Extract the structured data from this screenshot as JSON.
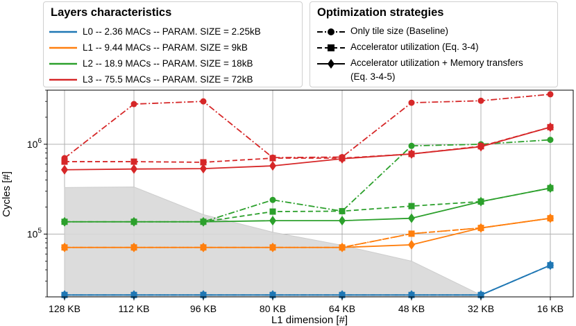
{
  "chart_data": {
    "type": "line",
    "xlabel": "L1 dimension [#]",
    "ylabel": "Cycles [#]",
    "yscale": "log",
    "ylim": [
      20000,
      4000000
    ],
    "y_tick_labels": [
      "10^5",
      "10^6"
    ],
    "categories": [
      "128 KB",
      "112 KB",
      "96 KB",
      "80 KB",
      "64 KB",
      "48 KB",
      "32 KB",
      "16 KB"
    ],
    "grid": true,
    "shaded_region": {
      "label": "",
      "color": "#d9d9d9",
      "upper_values": [
        330000,
        335000,
        165000,
        105000,
        75000,
        50000,
        21000,
        21000
      ],
      "x_range": [
        0,
        6
      ]
    },
    "legend_layers": {
      "title": "Layers characteristics",
      "entries": [
        {
          "label": "L0 -- 2.36 MACs -- PARAM. SIZE = 2.25kB",
          "color": "#1f77b4"
        },
        {
          "label": "L1 -- 9.44 MACs -- PARAM. SIZE = 9kB",
          "color": "#ff7f0e"
        },
        {
          "label": "L2 -- 18.9 MACs -- PARAM. SIZE = 18kB",
          "color": "#2ca02c"
        },
        {
          "label": "L3 -- 75.5 MACs -- PARAM. SIZE = 72kB",
          "color": "#d62728"
        }
      ]
    },
    "legend_strategies": {
      "title": "Optimization strategies",
      "entries": [
        {
          "label": "Only tile size (Baseline)",
          "marker": "circle",
          "dash": "dashdot"
        },
        {
          "label": "Accelerator utilization (Eq. 3-4)",
          "marker": "square",
          "dash": "dashed"
        },
        {
          "label": "Accelerator utilization +  Memory transfers",
          "label_line2": "(Eq. 3-4-5)",
          "marker": "diamond",
          "dash": "solid"
        }
      ]
    },
    "series": [
      {
        "name": "L0 Only tile size (Baseline)",
        "layer": "L0",
        "strategy": "baseline",
        "color": "#1f77b4",
        "values": [
          21000,
          21000,
          21000,
          21000,
          21000,
          21000,
          21000,
          45000
        ]
      },
      {
        "name": "L0 Accelerator utilization (Eq. 3-4)",
        "layer": "L0",
        "strategy": "accel",
        "color": "#1f77b4",
        "values": [
          21000,
          21000,
          21000,
          21000,
          21000,
          21000,
          21000,
          45000
        ]
      },
      {
        "name": "L0 Accelerator utilization + Memory transfers (Eq. 3-4-5)",
        "layer": "L0",
        "strategy": "accel_mem",
        "color": "#1f77b4",
        "values": [
          21000,
          21000,
          21000,
          21000,
          21000,
          21000,
          21000,
          45000
        ]
      },
      {
        "name": "L1 Only tile size (Baseline)",
        "layer": "L1",
        "strategy": "baseline",
        "color": "#ff7f0e",
        "values": [
          71000,
          71000,
          71000,
          71000,
          71000,
          101000,
          117000,
          150000
        ]
      },
      {
        "name": "L1 Accelerator utilization (Eq. 3-4)",
        "layer": "L1",
        "strategy": "accel",
        "color": "#ff7f0e",
        "values": [
          71000,
          71000,
          71000,
          71000,
          71000,
          101000,
          117000,
          150000
        ]
      },
      {
        "name": "L1 Accelerator utilization + Memory transfers (Eq. 3-4-5)",
        "layer": "L1",
        "strategy": "accel_mem",
        "color": "#ff7f0e",
        "values": [
          71000,
          71000,
          71000,
          71000,
          71000,
          76000,
          117000,
          150000
        ]
      },
      {
        "name": "L2 Only tile size (Baseline)",
        "layer": "L2",
        "strategy": "baseline",
        "color": "#2ca02c",
        "values": [
          137000,
          137000,
          137000,
          240000,
          180000,
          960000,
          1000000,
          1120000
        ]
      },
      {
        "name": "L2 Accelerator utilization (Eq. 3-4)",
        "layer": "L2",
        "strategy": "accel",
        "color": "#2ca02c",
        "values": [
          137000,
          137000,
          137000,
          178000,
          180000,
          205000,
          230000,
          325000
        ]
      },
      {
        "name": "L2 Accelerator utilization + Memory transfers (Eq. 3-4-5)",
        "layer": "L2",
        "strategy": "accel_mem",
        "color": "#2ca02c",
        "values": [
          137000,
          137000,
          137000,
          141000,
          141000,
          150000,
          230000,
          325000
        ]
      },
      {
        "name": "L3 Only tile size (Baseline)",
        "layer": "L3",
        "strategy": "baseline",
        "color": "#d62728",
        "values": [
          700000,
          2800000,
          3000000,
          710000,
          720000,
          2900000,
          3050000,
          3600000
        ]
      },
      {
        "name": "L3 Accelerator utilization (Eq. 3-4)",
        "layer": "L3",
        "strategy": "accel",
        "color": "#d62728",
        "values": [
          640000,
          640000,
          630000,
          700000,
          700000,
          780000,
          950000,
          1550000
        ]
      },
      {
        "name": "L3 Accelerator utilization + Memory transfers (Eq. 3-4-5)",
        "layer": "L3",
        "strategy": "accel_mem",
        "color": "#d62728",
        "values": [
          520000,
          530000,
          535000,
          575000,
          690000,
          780000,
          940000,
          1550000
        ]
      }
    ]
  }
}
